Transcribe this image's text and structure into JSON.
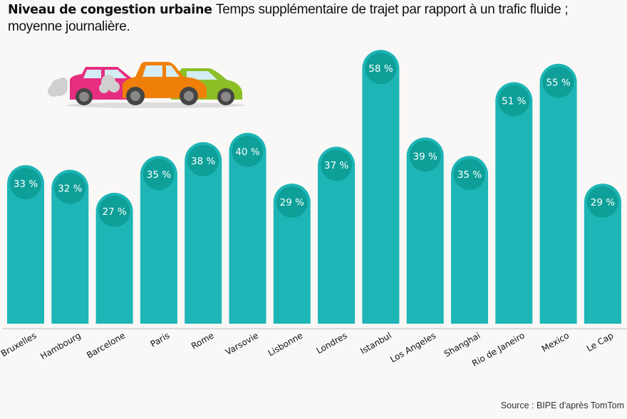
{
  "title": {
    "bold": "Niveau de congestion urbaine",
    "text": "Temps supplémentaire de trajet par rapport à un trafic fluide ; moyenne journalière."
  },
  "source": "Source : BIPE d'après TomTom",
  "illustration": "cars-traffic-jam-icon",
  "colors": {
    "bar": "#1db5b5",
    "circle": "#0e9f98",
    "label_text": "#ffffff",
    "background": "#f9f8f6"
  },
  "chart_data": {
    "type": "bar",
    "categories": [
      "Bruxelles",
      "Hambourg",
      "Barcelone",
      "Paris",
      "Rome",
      "Varsovie",
      "Lisbonne",
      "Londres",
      "Istanbul",
      "Los Angeles",
      "Shanghai",
      "Rio de Janeiro",
      "Mexico",
      "Le Cap"
    ],
    "values": [
      33,
      32,
      27,
      35,
      38,
      40,
      29,
      37,
      58,
      39,
      35,
      51,
      55,
      29
    ],
    "value_labels": [
      "33 %",
      "32 %",
      "27 %",
      "35 %",
      "38 %",
      "40 %",
      "29 %",
      "37 %",
      "58 %",
      "39 %",
      "35 %",
      "51 %",
      "55 %",
      "29 %"
    ],
    "unit": "%",
    "grid": false,
    "legend": "none"
  }
}
